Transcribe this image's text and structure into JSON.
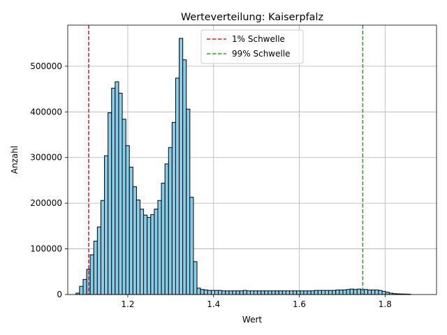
{
  "chart_data": {
    "type": "bar",
    "title": "Werteverteilung: Kaiserpfalz",
    "xlabel": "Wert",
    "ylabel": "Anzahl",
    "xlim": [
      1.06,
      1.92
    ],
    "ylim": [
      0,
      590000
    ],
    "grid": true,
    "legend_position": "top-center",
    "bar_color": "#87ceeb",
    "bar_edge_color": "#000000",
    "bin_start": 1.0792,
    "bin_width": 0.0083,
    "values": [
      3000,
      18000,
      33000,
      55000,
      87000,
      117000,
      148000,
      206000,
      304000,
      398000,
      452000,
      466000,
      441000,
      384000,
      326000,
      279000,
      236000,
      207000,
      187000,
      174000,
      169000,
      175000,
      187000,
      206000,
      244000,
      286000,
      322000,
      377000,
      474000,
      561000,
      514000,
      406000,
      213000,
      72000,
      14000,
      11000,
      10000,
      9000,
      9000,
      9000,
      9000,
      8000,
      8000,
      8000,
      8000,
      8000,
      8000,
      9000,
      8000,
      8000,
      8000,
      8000,
      8000,
      8000,
      8000,
      8000,
      8000,
      8000,
      8000,
      8000,
      8000,
      8000,
      8000,
      8000,
      8000,
      8000,
      8000,
      9000,
      9000,
      9000,
      9000,
      9000,
      9000,
      10000,
      10000,
      10000,
      11000,
      12000,
      11000,
      12000,
      11000,
      11000,
      10000,
      10000,
      10000,
      9000,
      7000,
      5000,
      3000,
      2000,
      1500,
      1200,
      1000,
      800
    ],
    "x_ticks": [
      "1.2",
      "1.4",
      "1.6",
      "1.8"
    ],
    "x_tick_values": [
      1.2,
      1.4,
      1.6,
      1.8
    ],
    "y_ticks": [
      "0",
      "100000",
      "200000",
      "300000",
      "400000",
      "500000"
    ],
    "y_tick_values": [
      0,
      100000,
      200000,
      300000,
      400000,
      500000
    ],
    "thresholds": [
      {
        "name": "1% Schwelle",
        "x": 1.109,
        "color": "#d62728"
      },
      {
        "name": "99% Schwelle",
        "x": 1.748,
        "color": "#2ca02c"
      }
    ]
  }
}
